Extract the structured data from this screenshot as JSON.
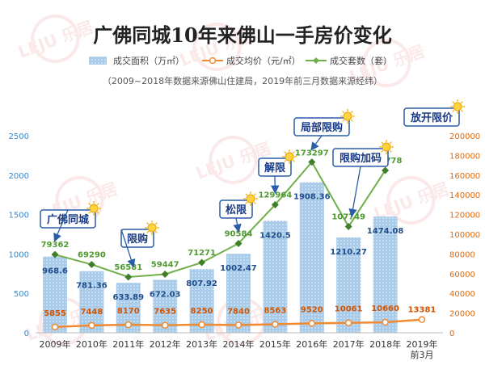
{
  "chart_data": {
    "type": "bar",
    "title": "广佛同城10年来佛山一手房价变化",
    "subtitle": "（2009~2018年数据来源佛山住建局，2019年前三月数据来源经纬）",
    "categories": [
      "2009年",
      "2010年",
      "2011年",
      "2012年",
      "2013年",
      "2014年",
      "2015年",
      "2016年",
      "2017年",
      "2018年",
      "2019年前3月"
    ],
    "series": [
      {
        "name": "成交面积（万㎡）",
        "type": "bar",
        "axis": "left",
        "color": "#9cc3e6",
        "values": [
          968.6,
          781.36,
          633.89,
          672.03,
          807.92,
          1002.47,
          1420.5,
          1908.36,
          1210.27,
          1474.08,
          null
        ],
        "labels": [
          "968.6",
          "781.36",
          "633.89",
          "672.03",
          "807.92",
          "1002.47",
          "1420.5",
          "1908.36",
          "1210.27",
          "1474.08",
          ""
        ]
      },
      {
        "name": "成交均价（元/㎡）",
        "type": "line",
        "axis": "right",
        "color": "#f08a30",
        "values": [
          5855,
          7448,
          8170,
          7635,
          8250,
          7840,
          8563,
          9520,
          10061,
          10660,
          13381
        ],
        "labels": [
          "5855",
          "7448",
          "8170",
          "7635",
          "8250",
          "7840",
          "8563",
          "9520",
          "10061",
          "10660",
          "13381"
        ]
      },
      {
        "name": "成交套数（套）",
        "type": "line",
        "axis": "right",
        "color": "#6fb04a",
        "values": [
          79362,
          69290,
          56581,
          59447,
          71271,
          90584,
          129964,
          173297,
          107749,
          164778,
          null
        ],
        "labels": [
          "79362",
          "69290",
          "56581",
          "59447",
          "71271",
          "90584",
          "129964",
          "173297",
          "107749",
          "164778",
          ""
        ]
      }
    ],
    "left_axis": {
      "ylim": [
        0,
        2500
      ],
      "ticks": [
        "0",
        "500",
        "1000",
        "1500",
        "2000",
        "2500"
      ],
      "color": "#3a86c8"
    },
    "right_axis": {
      "ylim": [
        0,
        200000
      ],
      "ticks": [
        "0",
        "20000",
        "40000",
        "60000",
        "80000",
        "100000",
        "120000",
        "140000",
        "160000",
        "180000",
        "200000"
      ],
      "color": "#e06a10"
    },
    "legend_position": "top",
    "annotations": [
      {
        "text": "广佛同城",
        "year_index": 0
      },
      {
        "text": "限购",
        "year_index": 2
      },
      {
        "text": "松限",
        "year_index": 5
      },
      {
        "text": "解限",
        "year_index": 6
      },
      {
        "text": "局部限购",
        "year_index": 7
      },
      {
        "text": "限购加码",
        "year_index": 8
      },
      {
        "text": "放开限价",
        "year_index": 10
      }
    ],
    "watermark": "LEJU 乐居"
  }
}
